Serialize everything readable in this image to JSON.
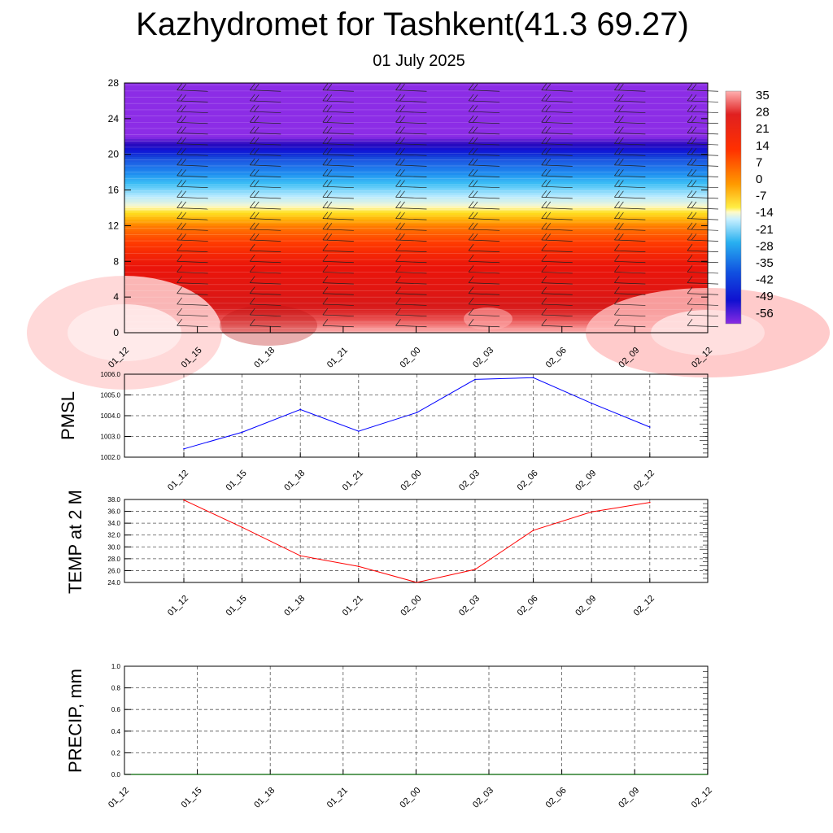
{
  "page": {
    "title": "Kazhydromet for Tashkent(41.3 69.27)",
    "subtitle": "01 July 2025"
  },
  "colors": {
    "pmsl_line": "#0000ff",
    "temp_line": "#ff0000",
    "precip_line": "#006400",
    "grid": "#555555"
  },
  "chart_data": [
    {
      "type": "heatmap",
      "name": "temperature-profile",
      "x_ticks": [
        "01_12",
        "01_15",
        "01_18",
        "01_21",
        "02_00",
        "02_03",
        "02_06",
        "02_09",
        "02_12"
      ],
      "y_ticks": [
        0,
        4,
        8,
        12,
        16,
        20,
        24,
        28
      ],
      "ylim": [
        0,
        28
      ],
      "colorbar_labels": [
        "35",
        "28",
        "21",
        "14",
        "7",
        "0",
        "-7",
        "-14",
        "-21",
        "-28",
        "-35",
        "-42",
        "-49",
        "-56"
      ],
      "value_by_height": [
        [
          0,
          36
        ],
        [
          2,
          30
        ],
        [
          4,
          26
        ],
        [
          8,
          20
        ],
        [
          12,
          9
        ],
        [
          13.5,
          0
        ],
        [
          14.5,
          -10
        ],
        [
          17,
          -22
        ],
        [
          19.5,
          -38
        ],
        [
          21,
          -55
        ],
        [
          22,
          -60
        ],
        [
          28,
          -60
        ]
      ],
      "wind_barbs": "yes"
    },
    {
      "type": "line",
      "ylabel": "PMSL",
      "y_ticks": [
        "1002.0",
        "1003.0",
        "1004.0",
        "1005.0",
        "1006.0"
      ],
      "ylim": [
        1002,
        1006
      ],
      "x_ticks": [
        "01_12",
        "01_15",
        "01_18",
        "01_21",
        "02_00",
        "02_03",
        "02_06",
        "02_09",
        "02_12"
      ],
      "x": [
        "01_12",
        "01_15",
        "01_18",
        "01_21",
        "02_00",
        "02_03",
        "02_06",
        "02_09",
        "02_12"
      ],
      "values": [
        1002.4,
        1003.2,
        1004.3,
        1003.25,
        1004.15,
        1005.75,
        1005.83,
        1004.6,
        1003.45
      ],
      "grid": true
    },
    {
      "type": "line",
      "ylabel": "TEMP at 2 M",
      "y_ticks": [
        "24.0",
        "26.0",
        "28.0",
        "30.0",
        "32.0",
        "34.0",
        "36.0",
        "38.0"
      ],
      "ylim": [
        24,
        38
      ],
      "x_ticks": [
        "01_12",
        "01_15",
        "01_18",
        "01_21",
        "02_00",
        "02_03",
        "02_06",
        "02_09",
        "02_12"
      ],
      "x": [
        "01_12",
        "01_15",
        "01_18",
        "01_21",
        "02_00",
        "02_03",
        "02_06",
        "02_09",
        "02_12"
      ],
      "values": [
        37.9,
        33.3,
        28.5,
        26.7,
        24.0,
        26.2,
        32.8,
        35.9,
        37.5
      ],
      "grid": true
    },
    {
      "type": "line",
      "ylabel": "PRECIP, mm",
      "y_ticks": [
        "0.0",
        "0.2",
        "0.4",
        "0.6",
        "0.8",
        "1.0"
      ],
      "ylim": [
        0,
        1
      ],
      "x_ticks": [
        "01_12",
        "01_15",
        "01_18",
        "01_21",
        "02_00",
        "02_03",
        "02_06",
        "02_09",
        "02_12"
      ],
      "x": [
        "01_12",
        "01_15",
        "01_18",
        "01_21",
        "02_00",
        "02_03",
        "02_06",
        "02_09",
        "02_12"
      ],
      "values": [
        0,
        0,
        0,
        0,
        0,
        0,
        0,
        0,
        0
      ],
      "grid": true
    }
  ]
}
